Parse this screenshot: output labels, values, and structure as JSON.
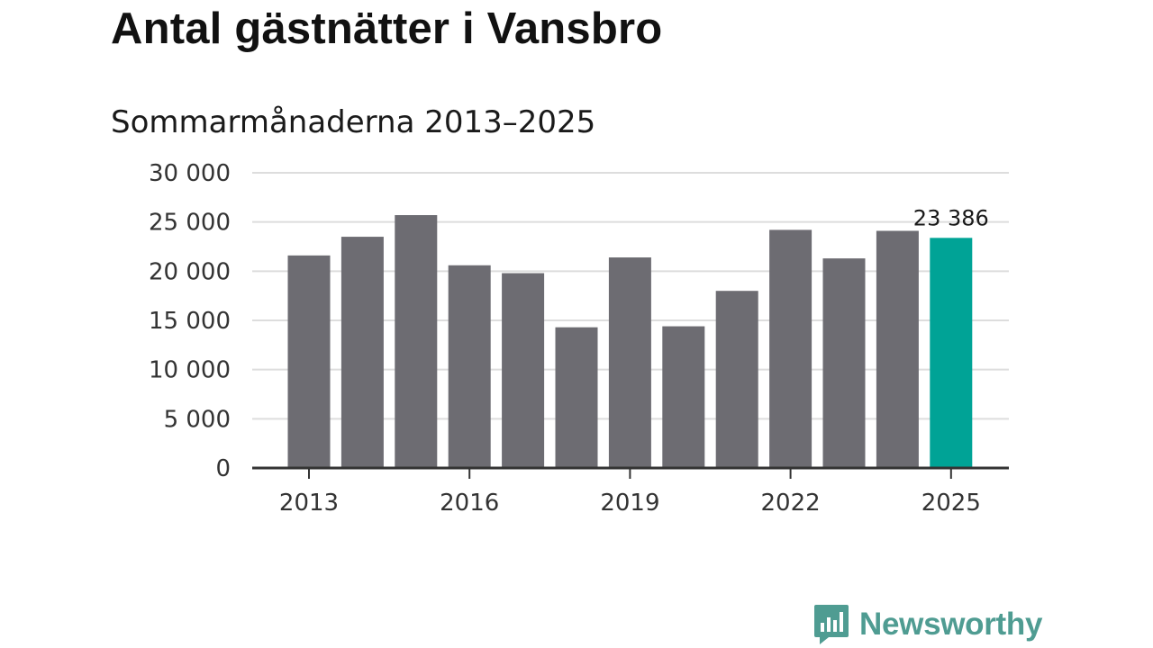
{
  "chart_data": {
    "type": "bar",
    "title": "Antal gästnätter i Vansbro",
    "subtitle": "Sommarmånaderna 2013–2025",
    "categories": [
      2013,
      2014,
      2015,
      2016,
      2017,
      2018,
      2019,
      2020,
      2021,
      2022,
      2023,
      2024,
      2025
    ],
    "values": [
      21600,
      23500,
      25700,
      20600,
      19800,
      14300,
      21400,
      14400,
      18000,
      24200,
      21300,
      24100,
      23386
    ],
    "ylim": [
      0,
      30000
    ],
    "y_ticks": [
      0,
      5000,
      10000,
      15000,
      20000,
      25000,
      30000
    ],
    "y_tick_labels": [
      "0",
      "5 000",
      "10 000",
      "15 000",
      "20 000",
      "25 000",
      "30 000"
    ],
    "x_tick_labels": [
      "2013",
      "2016",
      "2019",
      "2022",
      "2025"
    ],
    "x_tick_years": [
      2013,
      2016,
      2019,
      2022,
      2025
    ],
    "highlight_index": 12,
    "highlight_label": "23 386",
    "colors": {
      "bar": "#6d6c72",
      "highlight": "#00a396",
      "grid": "#dddddd",
      "axis": "#333333"
    },
    "grid": true,
    "legend": "none"
  },
  "brand": {
    "name": "Newsworthy",
    "icon": "newsworthy-logo-icon",
    "color": "#4f9c92"
  }
}
